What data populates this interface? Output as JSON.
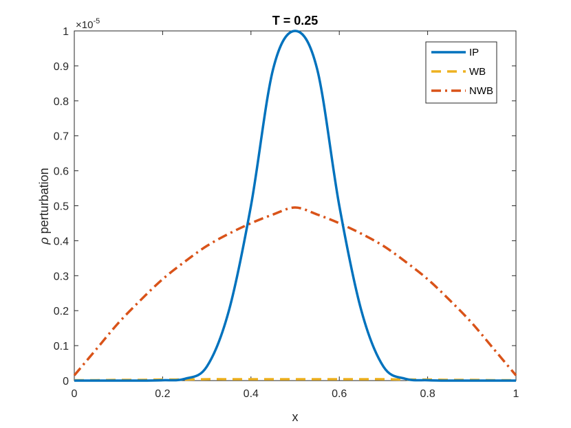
{
  "chart_data": {
    "type": "line",
    "title": "T = 0.25",
    "xlabel": "x",
    "ylabel_symbol": "ρ",
    "ylabel_text": " perturbation",
    "y_exponent_base": "×10",
    "y_exponent_power": "-5",
    "xlim": [
      0,
      1
    ],
    "ylim": [
      0,
      1
    ],
    "xticks": [
      0,
      0.2,
      0.4,
      0.6,
      0.8,
      1
    ],
    "xtick_labels": [
      "0",
      "0.2",
      "0.4",
      "0.6",
      "0.8",
      "1"
    ],
    "yticks": [
      0,
      0.1,
      0.2,
      0.3,
      0.4,
      0.5,
      0.6,
      0.7,
      0.8,
      0.9,
      1
    ],
    "ytick_labels": [
      "0",
      "0.1",
      "0.2",
      "0.3",
      "0.4",
      "0.5",
      "0.6",
      "0.7",
      "0.8",
      "0.9",
      "1"
    ],
    "grid": false,
    "legend_position": "top-right",
    "x": [
      0,
      0.05,
      0.1,
      0.15,
      0.2,
      0.25,
      0.3,
      0.35,
      0.4,
      0.45,
      0.5,
      0.55,
      0.6,
      0.65,
      0.7,
      0.75,
      0.8,
      0.85,
      0.9,
      0.95,
      1
    ],
    "series": [
      {
        "name": "IP",
        "color": "#0072BD",
        "style": "solid",
        "values": [
          0,
          0,
          0,
          0,
          0.001,
          0.005,
          0.04,
          0.2,
          0.5,
          0.89,
          1.0,
          0.89,
          0.5,
          0.2,
          0.04,
          0.005,
          0.001,
          0,
          0,
          0,
          0
        ]
      },
      {
        "name": "WB",
        "color": "#EDB120",
        "style": "dashed",
        "values": [
          0.001,
          0.001,
          0.002,
          0.002,
          0.003,
          0.003,
          0.004,
          0.004,
          0.004,
          0.004,
          0.004,
          0.004,
          0.004,
          0.004,
          0.004,
          0.003,
          0.003,
          0.002,
          0.002,
          0.001,
          0.001
        ]
      },
      {
        "name": "NWB",
        "color": "#D95319",
        "style": "dashdot",
        "values": [
          0.015,
          0.09,
          0.165,
          0.23,
          0.29,
          0.34,
          0.385,
          0.42,
          0.45,
          0.475,
          0.495,
          0.475,
          0.45,
          0.42,
          0.385,
          0.34,
          0.29,
          0.23,
          0.165,
          0.09,
          0.015
        ]
      }
    ]
  }
}
